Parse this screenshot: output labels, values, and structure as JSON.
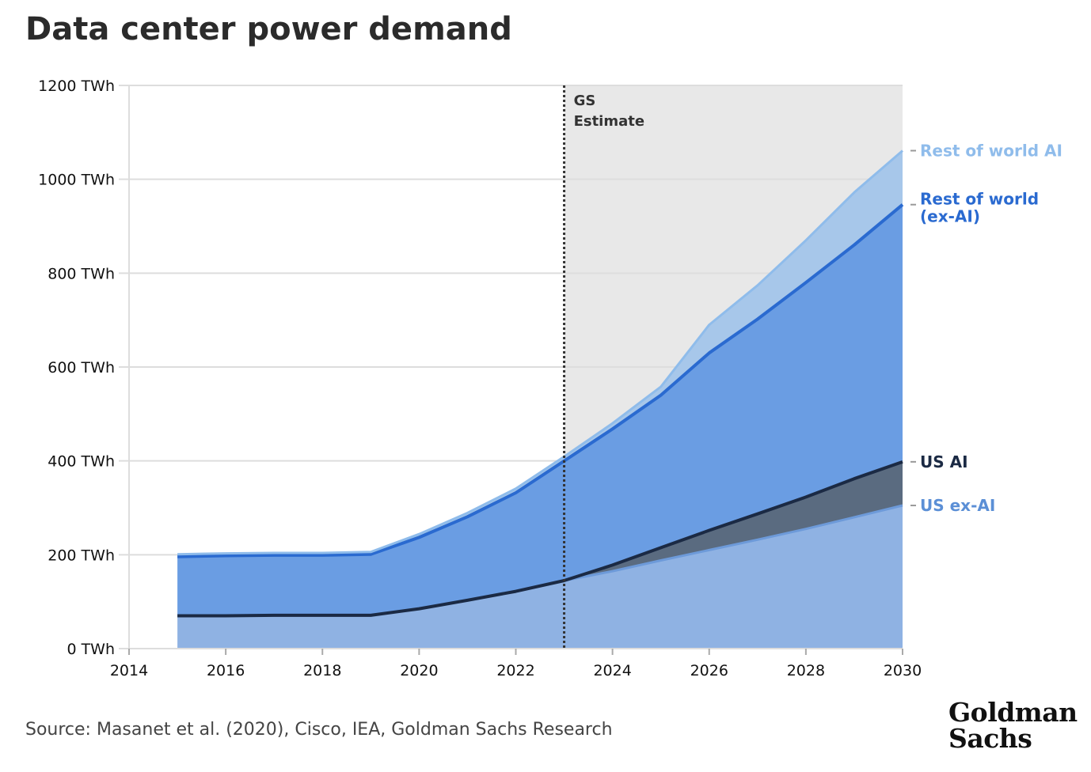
{
  "title": "Data center power demand",
  "source": "Source: Masanet et al. (2020), Cisco, IEA, Goldman Sachs Research",
  "logo": {
    "line1": "Goldman",
    "line2": "Sachs"
  },
  "estimate_label": {
    "line1": "GS",
    "line2": "Estimate"
  },
  "colors": {
    "estimate_shade": "#e8e8e8",
    "us_ex_ai_fill": "#8fb2e3",
    "us_ex_ai_line": "#6d9ad9",
    "us_ex_ai_label": "#5b8fd6",
    "us_ai_fill": "#5a6b80",
    "us_ai_line": "#1b2a44",
    "us_ai_label": "#1b2a44",
    "row_exai_fill": "#6a9de3",
    "row_exai_line": "#2a6ad0",
    "row_exai_label": "#2a6ad0",
    "row_ai_fill": "#a7c7ea",
    "row_ai_line": "#8fbceb",
    "row_ai_label": "#8fbceb",
    "grid": "#dddddd",
    "divider": "#333333"
  },
  "chart_data": {
    "type": "area",
    "stacked": true,
    "x": [
      2015,
      2016,
      2017,
      2018,
      2019,
      2020,
      2021,
      2022,
      2023,
      2024,
      2025,
      2026,
      2027,
      2028,
      2029,
      2030
    ],
    "series": [
      {
        "name": "US ex-AI",
        "values": [
          70,
          70,
          71,
          71,
          71,
          85,
          103,
          122,
          145,
          165,
          188,
          210,
          232,
          255,
          280,
          305
        ]
      },
      {
        "name": "US AI",
        "values": [
          0,
          0,
          0,
          0,
          0,
          0,
          0,
          0,
          0,
          13,
          27,
          42,
          55,
          68,
          82,
          93
        ]
      },
      {
        "name": "Rest of world (ex-AI)",
        "values": [
          126,
          128,
          128,
          128,
          130,
          152,
          178,
          210,
          255,
          290,
          325,
          378,
          415,
          457,
          498,
          548
        ]
      },
      {
        "name": "Rest of world AI",
        "values": [
          5,
          5,
          5,
          5,
          5,
          7,
          8,
          9,
          9,
          12,
          18,
          60,
          72,
          90,
          112,
          115
        ]
      }
    ],
    "xlim": [
      2014,
      2030
    ],
    "ylim": [
      0,
      1200
    ],
    "x_ticks": [
      "2014",
      "2016",
      "2018",
      "2020",
      "2022",
      "2024",
      "2026",
      "2028",
      "2030"
    ],
    "y_ticks": [
      "0 TWh",
      "200 TWh",
      "400 TWh",
      "600 TWh",
      "800 TWh",
      "1000 TWh",
      "1200 TWh"
    ],
    "estimate_start": 2023,
    "grid": true,
    "series_labels": [
      {
        "lines": [
          "Rest of world AI"
        ]
      },
      {
        "lines": [
          "Rest of world",
          "(ex-AI)"
        ]
      },
      {
        "lines": [
          "US AI"
        ]
      },
      {
        "lines": [
          "US ex-AI"
        ]
      }
    ]
  }
}
